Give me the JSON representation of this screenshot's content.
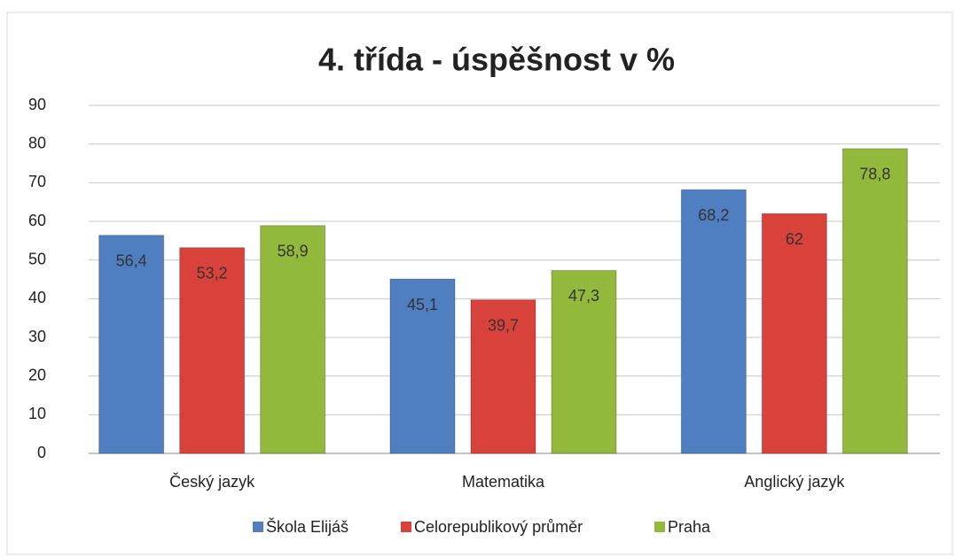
{
  "chart_data": {
    "type": "bar",
    "title": "4. třída - úspěšnost v %",
    "categories": [
      "Český jazyk",
      "Matematika",
      "Anglický jazyk"
    ],
    "series": [
      {
        "name": "Škola Elijáš",
        "color": "#4f7fc0",
        "values": [
          56.4,
          45.1,
          68.2
        ],
        "value_labels": [
          "56,4",
          "45,1",
          "68,2"
        ]
      },
      {
        "name": "Celorepublikový průměr",
        "color": "#d9413b",
        "values": [
          53.2,
          39.7,
          62
        ],
        "value_labels": [
          "53,2",
          "39,7",
          "62"
        ]
      },
      {
        "name": "Praha",
        "color": "#93b93c",
        "values": [
          58.9,
          47.3,
          78.8
        ],
        "value_labels": [
          "58,9",
          "47,3",
          "78,8"
        ]
      }
    ],
    "ylim": [
      0,
      90
    ],
    "yticks": [
      0,
      10,
      20,
      30,
      40,
      50,
      60,
      70,
      80,
      90
    ],
    "grid": true,
    "legend": "bottom"
  }
}
